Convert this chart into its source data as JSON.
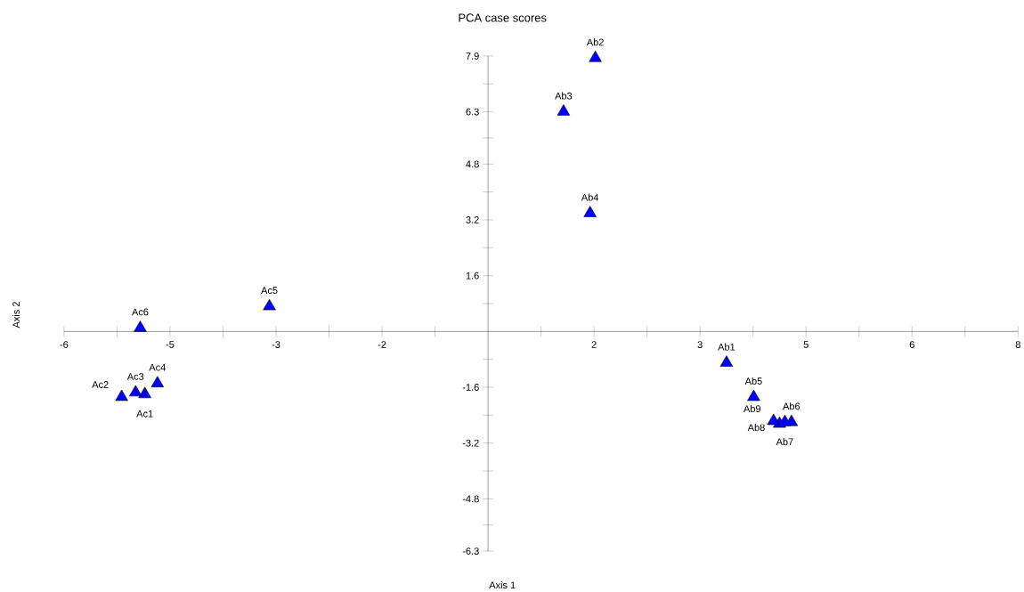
{
  "chart_data": {
    "type": "scatter",
    "title": "PCA case scores",
    "xlabel": "Axis 1",
    "ylabel": "Axis 2",
    "series": [
      {
        "color": "#0000ff",
        "x": [
          3.6,
          1.62,
          1.14,
          1.54,
          4.01,
          4.58,
          4.48,
          4.4,
          4.31,
          -5.18,
          -5.53,
          -5.32,
          -4.99,
          -3.3,
          -5.25
        ],
        "values": [
          -0.9,
          7.84,
          6.3,
          3.39,
          -1.88,
          -2.6,
          -2.6,
          -2.65,
          -2.57,
          -1.8,
          -1.88,
          -1.75,
          -1.49,
          0.72,
          0.1
        ]
      }
    ],
    "annotations": [
      {
        "text": "Ab1",
        "x": 3.6,
        "y": -0.9
      },
      {
        "text": "Ab2",
        "x": 1.62,
        "y": 7.84
      },
      {
        "text": "Ab3",
        "x": 1.14,
        "y": 6.3
      },
      {
        "text": "Ab4",
        "x": 1.54,
        "y": 3.39
      },
      {
        "text": "Ab5",
        "x": 4.01,
        "y": -1.88
      },
      {
        "text": "Ab6",
        "x": 4.58,
        "y": -2.6
      },
      {
        "text": "Ab7",
        "x": 4.48,
        "y": -2.6
      },
      {
        "text": "Ab8",
        "x": 4.4,
        "y": -2.65
      },
      {
        "text": "Ab9",
        "x": 4.31,
        "y": -2.57
      },
      {
        "text": "Ac1",
        "x": -5.18,
        "y": -1.8
      },
      {
        "text": "Ac2",
        "x": -5.53,
        "y": -1.88
      },
      {
        "text": "Ac3",
        "x": -5.32,
        "y": -1.75
      },
      {
        "text": "Ac4",
        "x": -4.99,
        "y": -1.49
      },
      {
        "text": "Ac5",
        "x": -3.3,
        "y": 0.72
      },
      {
        "text": "Ac6",
        "x": -5.25,
        "y": 0.1
      }
    ],
    "xlim": [
      -6.4,
      8.0
    ],
    "ylim": [
      -6.3,
      7.9
    ],
    "xticks": [
      {
        "value": -6.4,
        "label": "-6"
      },
      {
        "value": -5.6,
        "label": null
      },
      {
        "value": -4.8,
        "label": "-5"
      },
      {
        "value": -4.0,
        "label": null
      },
      {
        "value": -3.2,
        "label": "-3"
      },
      {
        "value": -2.4,
        "label": null
      },
      {
        "value": -1.6,
        "label": "-2"
      },
      {
        "value": -0.8,
        "label": null
      },
      {
        "value": 0.8,
        "label": null
      },
      {
        "value": 1.6,
        "label": "2"
      },
      {
        "value": 2.4,
        "label": null
      },
      {
        "value": 3.2,
        "label": "3"
      },
      {
        "value": 4.0,
        "label": null
      },
      {
        "value": 4.8,
        "label": "5"
      },
      {
        "value": 5.6,
        "label": null
      },
      {
        "value": 6.4,
        "label": "6"
      },
      {
        "value": 7.2,
        "label": null
      },
      {
        "value": 8.0,
        "label": "8"
      }
    ],
    "yticks": [
      -6.3,
      {
        "value": -5.55,
        "label": null
      },
      -4.8,
      {
        "value": -4.0,
        "label": null
      },
      -3.2,
      {
        "value": -2.4,
        "label": null
      },
      -1.6,
      {
        "value": -0.8,
        "label": null
      },
      {
        "value": 0.8,
        "label": null
      },
      1.6,
      {
        "value": 2.4,
        "label": null
      },
      3.2,
      {
        "value": 4.0,
        "label": null
      },
      4.8,
      {
        "value": 5.55,
        "label": null
      },
      6.3,
      {
        "value": 7.1,
        "label": null
      },
      7.9
    ],
    "marker": "triangle",
    "grid": false
  }
}
